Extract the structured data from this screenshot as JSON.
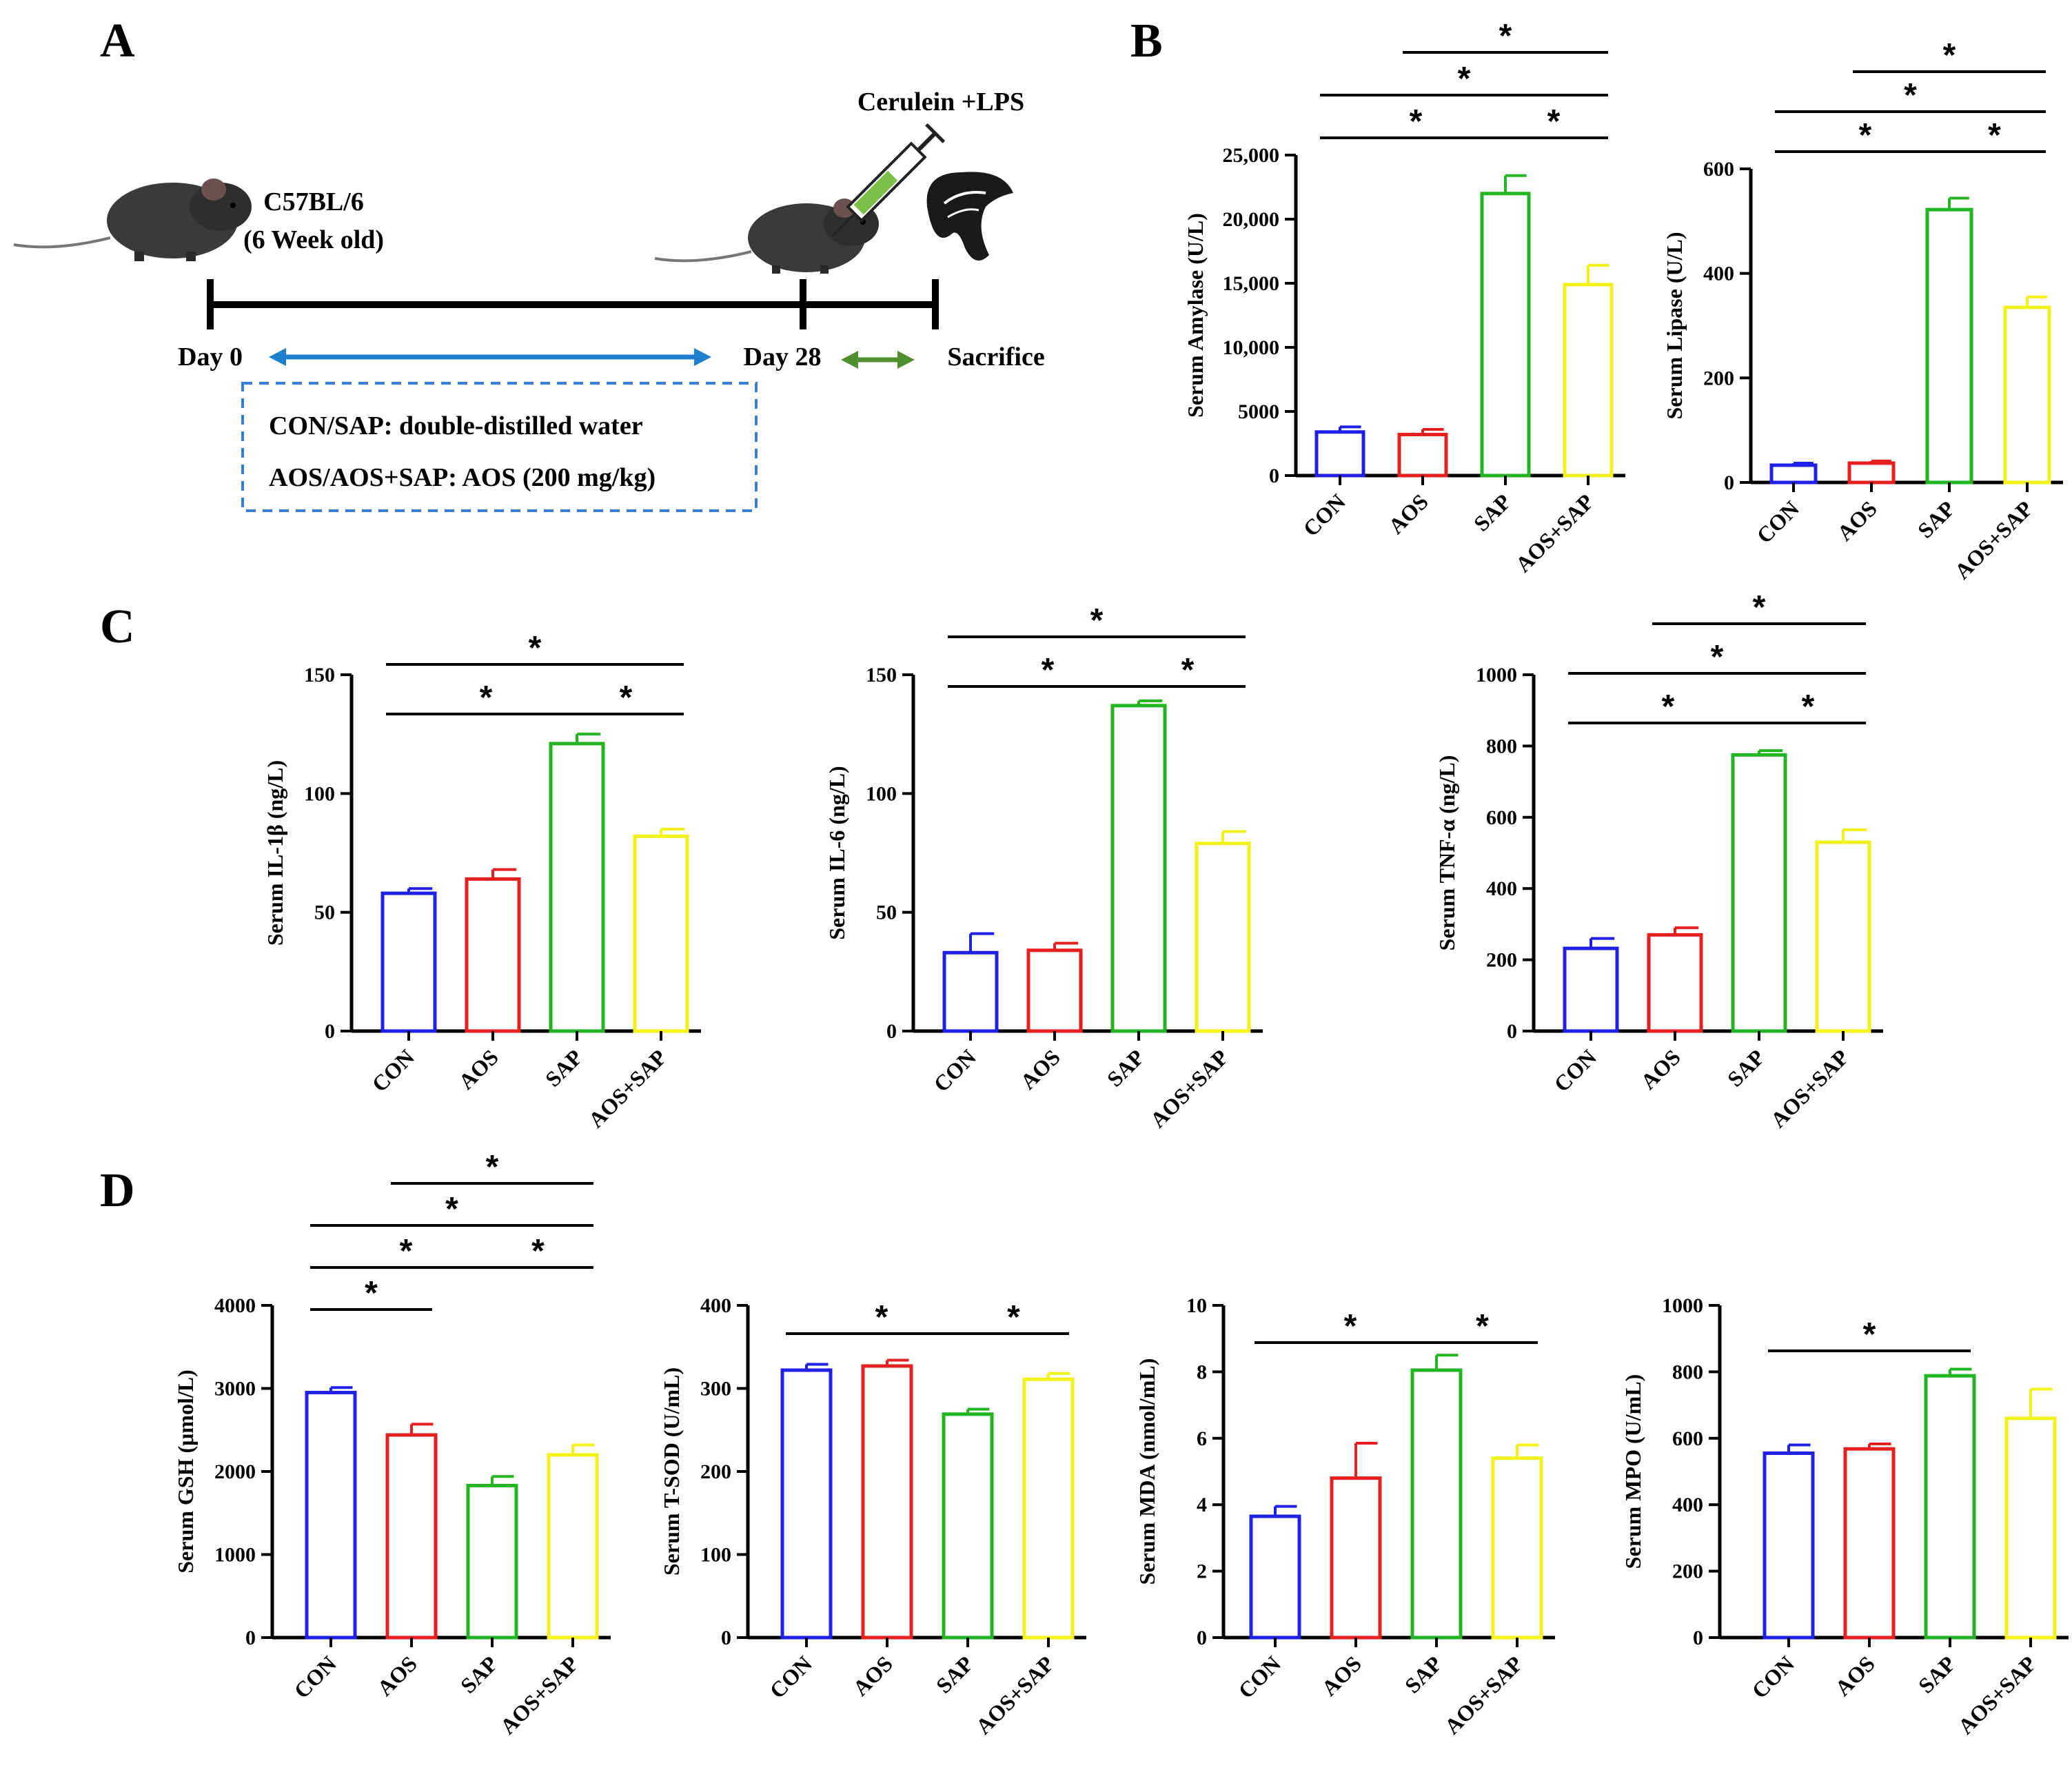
{
  "panels": {
    "A": "A",
    "B": "B",
    "C": "C",
    "D": "D"
  },
  "colors": {
    "CON": "#1f1fe6",
    "AOS": "#e61f1f",
    "SAP": "#22b522",
    "AOS+SAP": "#f2f21a",
    "timeline": "#000000",
    "arrow_blue": "#1f7fcf",
    "arrow_green": "#4f8f2f",
    "box": "#3a7fd6"
  },
  "schematic": {
    "strain": "C57BL/6",
    "age": "(6 Week old)",
    "treatment": "Cerulein +LPS",
    "day0": "Day 0",
    "day28": "Day 28",
    "end": "Sacrifice",
    "line1": "CON/SAP: double-distilled water",
    "line2": "AOS/AOS+SAP: AOS (200 mg/kg)",
    "icons": [
      "mouse-icon",
      "mouse-icon",
      "syringe-icon",
      "pancreas-icon"
    ]
  },
  "chart_data": [
    {
      "id": "amylase",
      "type": "bar",
      "categories": [
        "CON",
        "AOS",
        "SAP",
        "AOS+SAP"
      ],
      "values": [
        3400,
        3200,
        22000,
        14900
      ],
      "errors": [
        400,
        400,
        1400,
        1500
      ],
      "ylabel": "Serum Amylase (U/L)",
      "ylim": [
        0,
        25000
      ],
      "yticks": [
        0,
        5000,
        10000,
        15000,
        20000,
        25000
      ],
      "yticklabels": [
        "0",
        "5000",
        "10,000",
        "15,000",
        "20,000",
        "25,000"
      ],
      "significance": [
        [
          0,
          2,
          1
        ],
        [
          2,
          3,
          1
        ],
        [
          0,
          3,
          2
        ],
        [
          1,
          3,
          3
        ]
      ],
      "star": "*"
    },
    {
      "id": "lipase",
      "type": "bar",
      "categories": [
        "CON",
        "AOS",
        "SAP",
        "AOS+SAP"
      ],
      "values": [
        33,
        37,
        522,
        335
      ],
      "errors": [
        4,
        4,
        22,
        20
      ],
      "ylabel": "Serum Lipase (U/L)",
      "ylim": [
        0,
        600
      ],
      "yticks": [
        0,
        200,
        400,
        600
      ],
      "yticklabels": [
        "0",
        "200",
        "400",
        "600"
      ],
      "significance": [
        [
          0,
          2,
          1
        ],
        [
          2,
          3,
          1
        ],
        [
          0,
          3,
          2
        ],
        [
          1,
          3,
          3
        ]
      ],
      "star": "*"
    },
    {
      "id": "il1b",
      "type": "bar",
      "categories": [
        "CON",
        "AOS",
        "SAP",
        "AOS+SAP"
      ],
      "values": [
        58,
        64,
        121,
        82
      ],
      "errors": [
        2,
        4,
        4,
        3
      ],
      "ylabel": "Serum IL-1β (ng/L)",
      "ylim": [
        0,
        150
      ],
      "yticks": [
        0,
        50,
        100,
        150
      ],
      "yticklabels": [
        "0",
        "50",
        "100",
        "150"
      ],
      "significance": [
        [
          0,
          2,
          1
        ],
        [
          2,
          3,
          1
        ],
        [
          0,
          3,
          2
        ]
      ],
      "star": "*"
    },
    {
      "id": "il6",
      "type": "bar",
      "categories": [
        "CON",
        "AOS",
        "SAP",
        "AOS+SAP"
      ],
      "values": [
        33,
        34,
        137,
        79
      ],
      "errors": [
        8,
        3,
        2,
        5
      ],
      "ylabel": "Serum IL-6 (ng/L)",
      "ylim": [
        0,
        150
      ],
      "yticks": [
        0,
        50,
        100,
        150
      ],
      "yticklabels": [
        "0",
        "50",
        "100",
        "150"
      ],
      "significance": [
        [
          0,
          2,
          1
        ],
        [
          2,
          3,
          1
        ],
        [
          0,
          3,
          2
        ]
      ],
      "star": "*"
    },
    {
      "id": "tnfa",
      "type": "bar",
      "categories": [
        "CON",
        "AOS",
        "SAP",
        "AOS+SAP"
      ],
      "values": [
        232,
        270,
        775,
        530
      ],
      "errors": [
        28,
        20,
        12,
        35
      ],
      "ylabel": "Serum TNF-α (ng/L)",
      "ylim": [
        0,
        1000
      ],
      "yticks": [
        0,
        200,
        400,
        600,
        800,
        1000
      ],
      "yticklabels": [
        "0",
        "200",
        "400",
        "600",
        "800",
        "1000"
      ],
      "significance": [
        [
          0,
          2,
          1
        ],
        [
          2,
          3,
          1
        ],
        [
          0,
          3,
          2
        ],
        [
          1,
          3,
          3
        ]
      ],
      "star": "*"
    },
    {
      "id": "gsh",
      "type": "bar",
      "categories": [
        "CON",
        "AOS",
        "SAP",
        "AOS+SAP"
      ],
      "values": [
        2950,
        2440,
        1830,
        2200
      ],
      "errors": [
        60,
        130,
        110,
        120
      ],
      "ylabel": "Serum GSH (μmol/L)",
      "ylim": [
        0,
        4000
      ],
      "yticks": [
        0,
        1000,
        2000,
        3000,
        4000
      ],
      "yticklabels": [
        "0",
        "1000",
        "2000",
        "3000",
        "4000"
      ],
      "significance": [
        [
          0,
          1,
          1
        ],
        [
          0,
          2,
          2
        ],
        [
          2,
          3,
          2
        ],
        [
          0,
          3,
          3
        ],
        [
          1,
          3,
          4
        ]
      ],
      "star": "*"
    },
    {
      "id": "tsod",
      "type": "bar",
      "categories": [
        "CON",
        "AOS",
        "SAP",
        "AOS+SAP"
      ],
      "values": [
        322,
        327,
        269,
        311
      ],
      "errors": [
        7,
        7,
        6,
        7
      ],
      "ylabel": "Serum T-SOD (U/mL)",
      "ylim": [
        0,
        400
      ],
      "yticks": [
        0,
        100,
        200,
        300,
        400
      ],
      "yticklabels": [
        "0",
        "100",
        "200",
        "300",
        "400"
      ],
      "significance": [
        [
          0,
          2,
          1
        ],
        [
          2,
          3,
          1
        ]
      ],
      "star": "*"
    },
    {
      "id": "mda",
      "type": "bar",
      "categories": [
        "CON",
        "AOS",
        "SAP",
        "AOS+SAP"
      ],
      "values": [
        3.65,
        4.8,
        8.05,
        5.4
      ],
      "errors": [
        0.3,
        1.05,
        0.45,
        0.4
      ],
      "ylabel": "Serum MDA (nmol/mL)",
      "ylim": [
        0,
        10
      ],
      "yticks": [
        0,
        2,
        4,
        6,
        8,
        10
      ],
      "yticklabels": [
        "0",
        "2",
        "4",
        "6",
        "8",
        "10"
      ],
      "significance": [
        [
          0,
          2,
          1
        ],
        [
          2,
          3,
          1
        ]
      ],
      "star": "*"
    },
    {
      "id": "mpo",
      "type": "bar",
      "categories": [
        "CON",
        "AOS",
        "SAP",
        "AOS+SAP"
      ],
      "values": [
        555,
        568,
        788,
        660
      ],
      "errors": [
        25,
        15,
        20,
        88
      ],
      "ylabel": "Serum MPO (U/mL)",
      "ylim": [
        0,
        1000
      ],
      "yticks": [
        0,
        200,
        400,
        600,
        800,
        1000
      ],
      "yticklabels": [
        "0",
        "200",
        "400",
        "600",
        "800",
        "1000"
      ],
      "significance": [
        [
          0,
          2,
          1
        ]
      ],
      "star": "*"
    }
  ]
}
